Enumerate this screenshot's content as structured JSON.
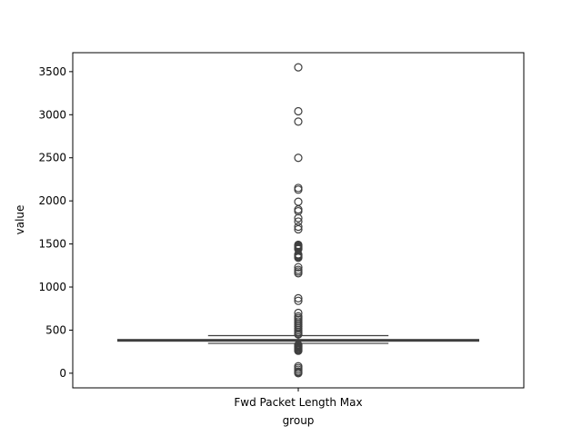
{
  "chart_data": {
    "type": "box",
    "xlabel": "group",
    "ylabel": "value",
    "categories": [
      "Fwd Packet Length Max"
    ],
    "ylim": [
      -170,
      3720
    ],
    "yticks": [
      0,
      500,
      1000,
      1500,
      2000,
      2500,
      3000,
      3500
    ],
    "grid": false,
    "legend": "none",
    "box": {
      "min": 346,
      "q1": 372,
      "median": 383,
      "q3": 391,
      "max": 436
    },
    "outliers": [
      3550,
      3040,
      2920,
      2500,
      2150,
      2130,
      1990,
      1900,
      1880,
      1800,
      1760,
      1700,
      1670,
      1490,
      1480,
      1470,
      1460,
      1450,
      1440,
      1380,
      1370,
      1360,
      1350,
      1340,
      1230,
      1200,
      1180,
      1160,
      870,
      840,
      700,
      660,
      640,
      620,
      600,
      580,
      560,
      540,
      520,
      500,
      480,
      460,
      450,
      330,
      320,
      310,
      300,
      290,
      280,
      270,
      260,
      80,
      60,
      40,
      20,
      10,
      0
    ],
    "colors": {
      "box_fill": "#3b4d67",
      "box_edge": "#3f3f3f",
      "outlier_edge": "#3f3f3f"
    }
  }
}
